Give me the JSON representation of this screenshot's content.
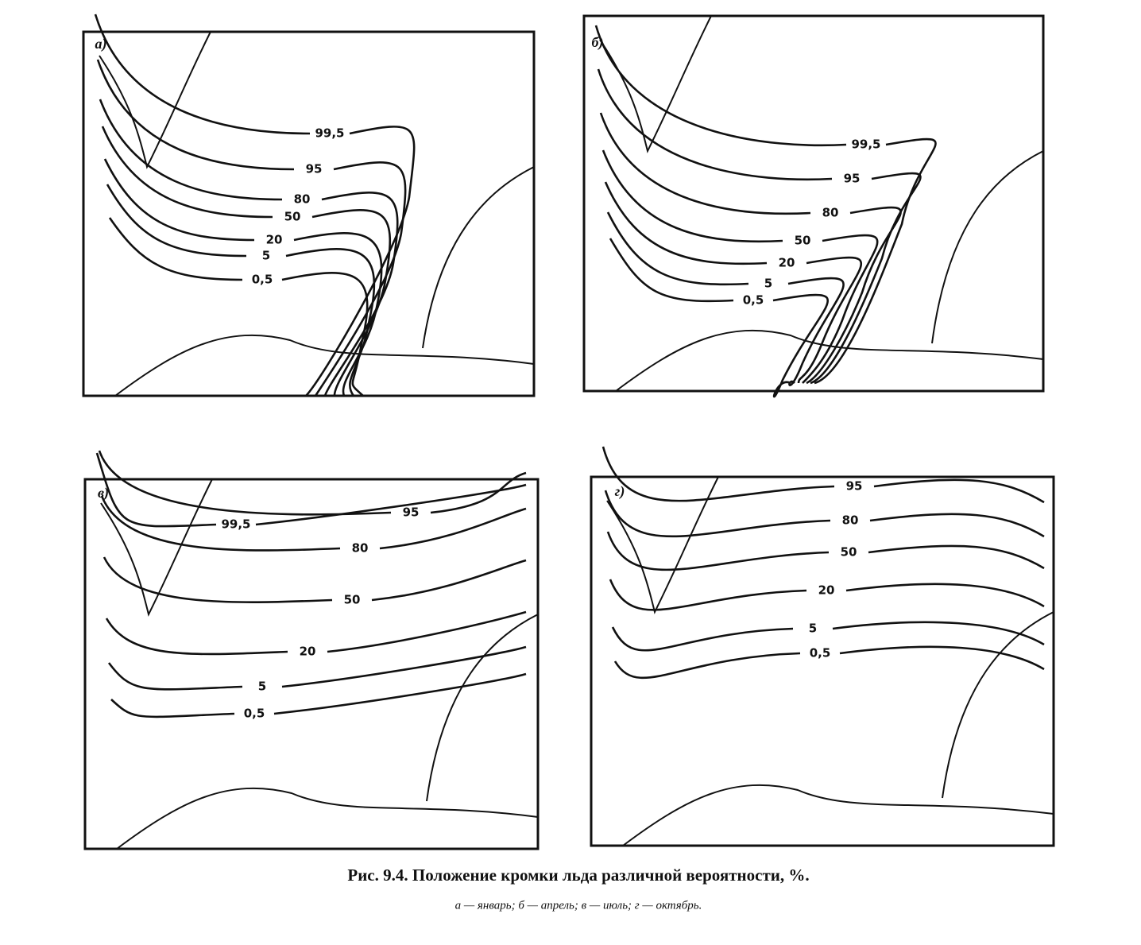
{
  "panels": [
    {
      "label": "а)",
      "contours": [
        "99,5",
        "95",
        "80",
        "50",
        "20",
        "5",
        "0,5"
      ]
    },
    {
      "label": "б)",
      "contours": [
        "99,5",
        "95",
        "80",
        "50",
        "20",
        "5",
        "0,5"
      ]
    },
    {
      "label": "в)",
      "contours": [
        "99,5",
        "95",
        "80",
        "50",
        "20",
        "5",
        "0,5"
      ]
    },
    {
      "label": "г)",
      "contours": [
        "95",
        "80",
        "50",
        "20",
        "5",
        "0,5"
      ]
    }
  ],
  "caption": {
    "title": "Рис. 9.4. Положение кромки льда различной вероятности, %.",
    "legend": "а — январь; б — апрель; в — июль; г — октябрь."
  }
}
